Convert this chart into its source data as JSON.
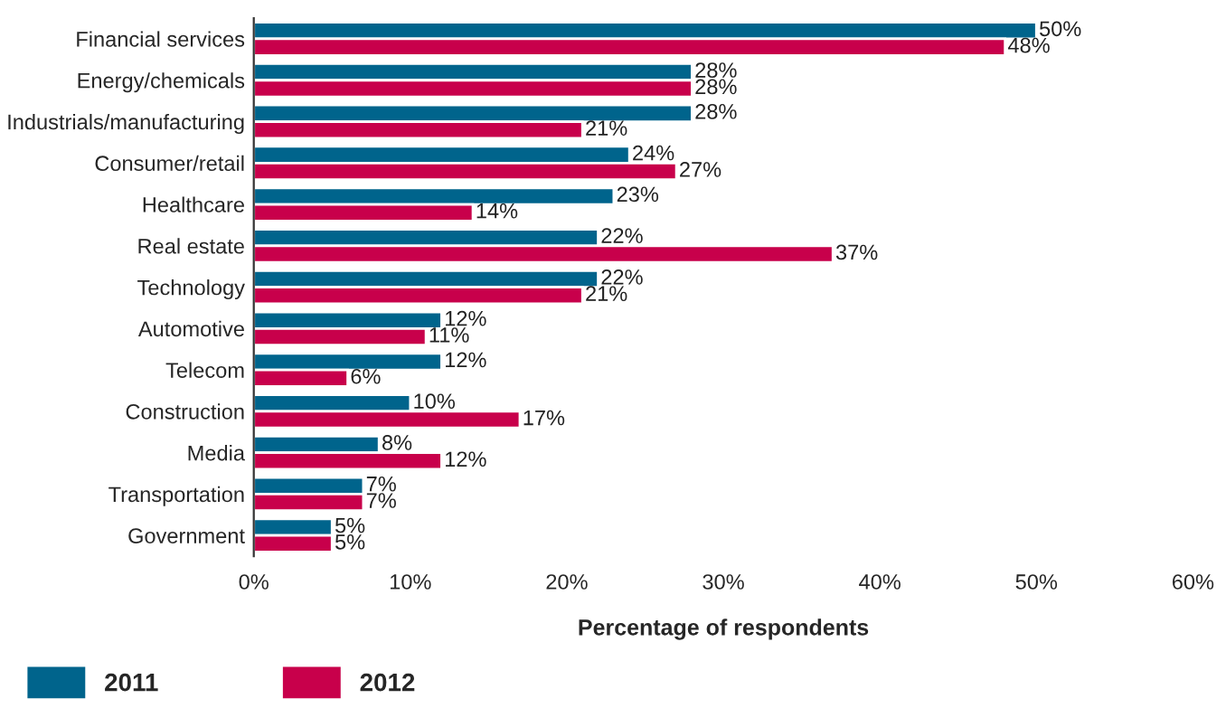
{
  "chart_data": {
    "type": "bar",
    "orientation": "horizontal",
    "xlabel": "Percentage of respondents",
    "categories": [
      "Financial services",
      "Energy/chemicals",
      "Industrials/manufacturing",
      "Consumer/retail",
      "Healthcare",
      "Real estate",
      "Technology",
      "Automotive",
      "Telecom",
      "Construction",
      "Media",
      "Transportation",
      "Government"
    ],
    "series": [
      {
        "name": "2011",
        "color": "#00648c",
        "values": [
          50,
          28,
          28,
          24,
          23,
          22,
          22,
          12,
          12,
          10,
          8,
          7,
          5
        ],
        "value_labels": [
          "50%",
          "28%",
          "28%",
          "24%",
          "23%",
          "22%",
          "22%",
          "12%",
          "12%",
          "10%",
          "8%",
          "7%",
          "5%"
        ]
      },
      {
        "name": "2012",
        "color": "#c8004b",
        "values": [
          48,
          28,
          21,
          27,
          14,
          37,
          21,
          11,
          6,
          17,
          12,
          7,
          5
        ],
        "value_labels": [
          "48%",
          "28%",
          "21%",
          "27%",
          "14%",
          "37%",
          "21%",
          "11%",
          "6%",
          "17%",
          "12%",
          "7%",
          "5%"
        ]
      }
    ],
    "xlim": [
      0,
      60
    ],
    "xticks": [
      {
        "value": 0,
        "label": "0%"
      },
      {
        "value": 10,
        "label": "10%"
      },
      {
        "value": 20,
        "label": "20%"
      },
      {
        "value": 30,
        "label": "30%"
      },
      {
        "value": 40,
        "label": "40%"
      },
      {
        "value": 50,
        "label": "50%"
      },
      {
        "value": 60,
        "label": "60%"
      }
    ],
    "grid": false,
    "legend": "bottom left"
  }
}
